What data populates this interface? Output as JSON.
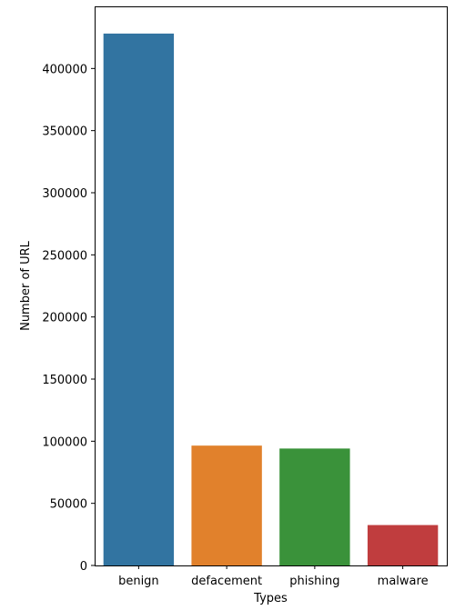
{
  "chart_data": {
    "type": "bar",
    "title": "",
    "xlabel": "Types",
    "ylabel": "Number of URL",
    "categories": [
      "benign",
      "defacement",
      "phishing",
      "malware"
    ],
    "values": [
      428103,
      96457,
      94111,
      32520
    ],
    "colors": [
      "#3274a1",
      "#e1812c",
      "#3a923a",
      "#c03d3e"
    ],
    "ylim": [
      0,
      450000
    ],
    "yticks": [
      0,
      50000,
      100000,
      150000,
      200000,
      250000,
      300000,
      350000,
      400000
    ],
    "ytick_labels": [
      "0",
      "50000",
      "100000",
      "150000",
      "200000",
      "250000",
      "300000",
      "350000",
      "400000"
    ],
    "grid": false,
    "legend": "none"
  }
}
